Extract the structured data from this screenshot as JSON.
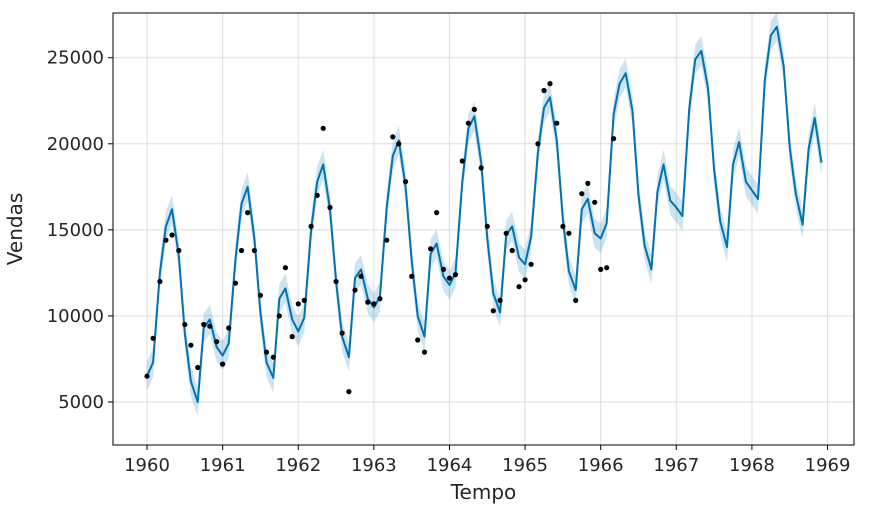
{
  "chart_data": {
    "type": "line",
    "title": "",
    "xlabel": "Tempo",
    "ylabel": "Vendas",
    "xlim": [
      1959.55,
      1969.35
    ],
    "ylim": [
      2500,
      27600
    ],
    "grid": true,
    "x_ticks": [
      1960,
      1961,
      1962,
      1963,
      1964,
      1965,
      1966,
      1967,
      1968,
      1969
    ],
    "x_tick_labels": [
      "1960",
      "1961",
      "1962",
      "1963",
      "1964",
      "1965",
      "1966",
      "1967",
      "1968",
      "1969"
    ],
    "y_ticks": [
      5000,
      10000,
      15000,
      20000,
      25000
    ],
    "y_tick_labels": [
      "5000",
      "10000",
      "15000",
      "20000",
      "25000"
    ],
    "colors": {
      "forecast": "#0072B2",
      "band": "#0072B2",
      "observed": "#000000",
      "grid": "#dddddd"
    },
    "band_halfwidth": 850,
    "forecast": {
      "x": [
        1960.0,
        1960.08,
        1960.17,
        1960.25,
        1960.33,
        1960.42,
        1960.5,
        1960.58,
        1960.67,
        1960.75,
        1960.83,
        1960.92,
        1961.0,
        1961.08,
        1961.17,
        1961.25,
        1961.33,
        1961.42,
        1961.5,
        1961.58,
        1961.67,
        1961.75,
        1961.83,
        1961.92,
        1962.0,
        1962.08,
        1962.17,
        1962.25,
        1962.33,
        1962.42,
        1962.5,
        1962.58,
        1962.67,
        1962.75,
        1962.83,
        1962.92,
        1963.0,
        1963.08,
        1963.17,
        1963.25,
        1963.33,
        1963.42,
        1963.5,
        1963.58,
        1963.67,
        1963.75,
        1963.83,
        1963.92,
        1964.0,
        1964.08,
        1964.17,
        1964.25,
        1964.33,
        1964.42,
        1964.5,
        1964.58,
        1964.67,
        1964.75,
        1964.83,
        1964.92,
        1965.0,
        1965.08,
        1965.17,
        1965.25,
        1965.33,
        1965.42,
        1965.5,
        1965.58,
        1965.67,
        1965.75,
        1965.83,
        1965.92,
        1966.0,
        1966.08,
        1966.17,
        1966.25,
        1966.33,
        1966.42,
        1966.5,
        1966.58,
        1966.67,
        1966.75,
        1966.83,
        1966.92,
        1967.0,
        1967.08,
        1967.17,
        1967.25,
        1967.33,
        1967.42,
        1967.5,
        1967.58,
        1967.67,
        1967.75,
        1967.83,
        1967.92,
        1968.0,
        1968.08,
        1968.17,
        1968.25,
        1968.33,
        1968.42,
        1968.5,
        1968.58,
        1968.67,
        1968.75,
        1968.83,
        1968.92
      ],
      "y": [
        6500,
        7300,
        12500,
        15200,
        16200,
        13500,
        9000,
        6200,
        5000,
        9300,
        9800,
        8200,
        7700,
        8400,
        13300,
        16500,
        17500,
        14500,
        10200,
        7300,
        6400,
        11000,
        11600,
        9800,
        9100,
        9900,
        15000,
        17800,
        18800,
        16200,
        12000,
        8800,
        7600,
        12200,
        12700,
        11000,
        10500,
        11100,
        16300,
        19300,
        20200,
        17500,
        13200,
        10000,
        8800,
        13600,
        14200,
        12300,
        11800,
        12500,
        17800,
        20900,
        21600,
        18900,
        14500,
        11300,
        10200,
        14700,
        15200,
        13400,
        13000,
        14600,
        19500,
        22100,
        22700,
        20200,
        15600,
        12600,
        11500,
        16200,
        16800,
        14800,
        14500,
        15400,
        21700,
        23500,
        24100,
        21900,
        17000,
        14100,
        12700,
        17200,
        18800,
        16700,
        16300,
        15800,
        22000,
        24900,
        25400,
        23200,
        18500,
        15500,
        14000,
        18800,
        20100,
        17800,
        17300,
        16800,
        23700,
        26300,
        26800,
        24500,
        19800,
        17100,
        15300,
        19700,
        21500,
        18900
      ]
    },
    "observed": {
      "x": [
        1960.0,
        1960.08,
        1960.17,
        1960.25,
        1960.33,
        1960.42,
        1960.5,
        1960.58,
        1960.67,
        1960.75,
        1960.83,
        1960.92,
        1961.0,
        1961.08,
        1961.17,
        1961.25,
        1961.33,
        1961.42,
        1961.5,
        1961.58,
        1961.67,
        1961.75,
        1961.83,
        1961.92,
        1962.0,
        1962.08,
        1962.17,
        1962.25,
        1962.33,
        1962.42,
        1962.5,
        1962.58,
        1962.67,
        1962.75,
        1962.83,
        1962.92,
        1963.0,
        1963.08,
        1963.17,
        1963.25,
        1963.33,
        1963.42,
        1963.5,
        1963.58,
        1963.67,
        1963.75,
        1963.83,
        1963.92,
        1964.0,
        1964.08,
        1964.17,
        1964.25,
        1964.33,
        1964.42,
        1964.5,
        1964.58,
        1964.67,
        1964.75,
        1964.83,
        1964.92,
        1965.0,
        1965.08,
        1965.17,
        1965.25,
        1965.33,
        1965.42,
        1965.5,
        1965.58,
        1965.67,
        1965.75,
        1965.83,
        1965.92,
        1966.0,
        1966.08,
        1966.17
      ],
      "y": [
        6500,
        8700,
        12000,
        14400,
        14700,
        13800,
        9500,
        8300,
        7000,
        9500,
        9400,
        8500,
        7200,
        9300,
        11900,
        13800,
        16000,
        13800,
        11200,
        7900,
        7600,
        10000,
        12800,
        8800,
        10700,
        10900,
        15200,
        17000,
        20900,
        16300,
        12000,
        9000,
        5600,
        11500,
        12300,
        10800,
        10700,
        11000,
        14400,
        20400,
        20000,
        17800,
        12300,
        8600,
        7900,
        13900,
        16000,
        12700,
        12200,
        12400,
        19000,
        21200,
        22000,
        18600,
        15200,
        10300,
        10900,
        14800,
        13800,
        11700,
        12100,
        13000,
        20000,
        23100,
        23500,
        21200,
        15200,
        14800,
        10900,
        17100,
        17700,
        16600,
        12700,
        12800,
        20300
      ]
    }
  }
}
